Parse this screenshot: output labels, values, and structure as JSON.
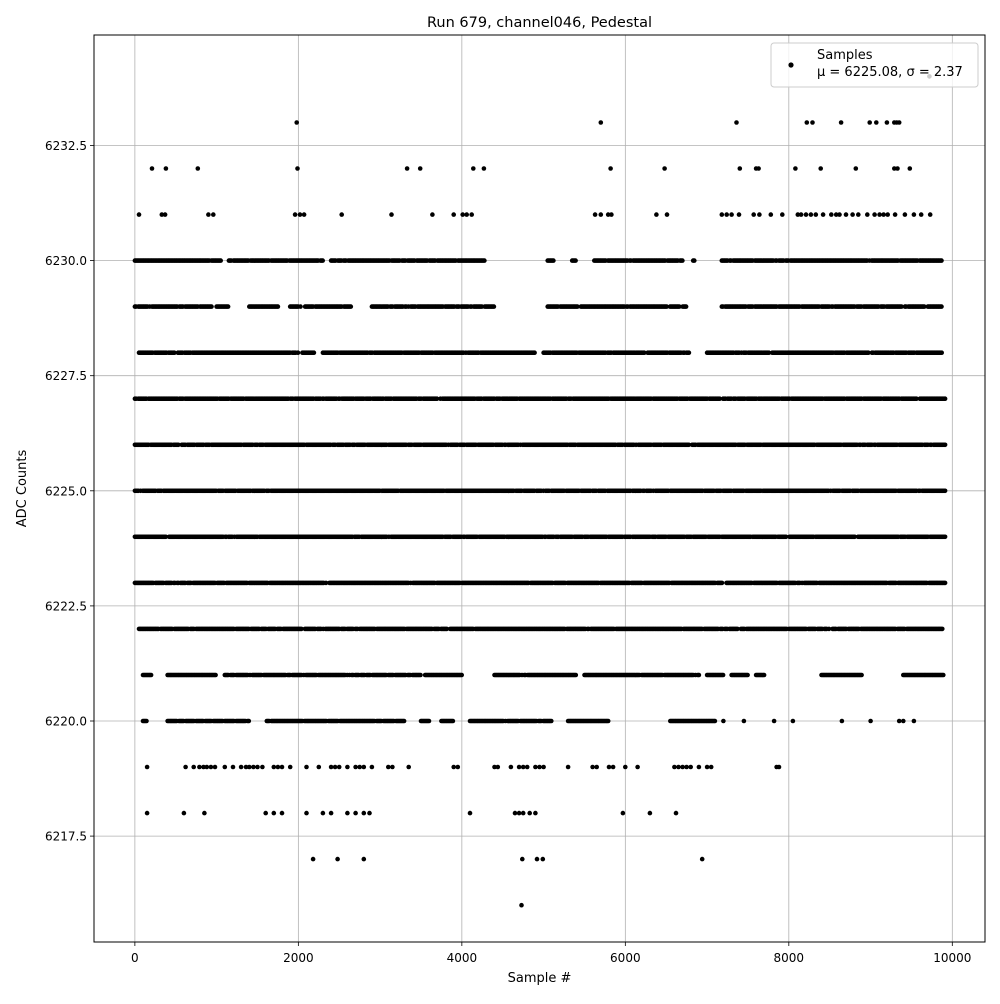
{
  "chart_data": {
    "type": "scatter",
    "title": "Run 679, channel046, Pedestal",
    "xlabel": "Sample #",
    "ylabel": "ADC Counts",
    "xlim": [
      -500,
      10400
    ],
    "ylim": [
      6215.2,
      6234.9
    ],
    "x_ticks": [
      0,
      2000,
      4000,
      6000,
      8000,
      10000
    ],
    "y_ticks": [
      6217.5,
      6220.0,
      6222.5,
      6225.0,
      6227.5,
      6230.0,
      6232.5
    ],
    "grid": true,
    "legend": {
      "placement": "top-right",
      "entries": [
        "Samples",
        "μ = 6225.08, σ = 2.37"
      ]
    },
    "series": [
      {
        "name": "Samples",
        "color": "#000000",
        "sample_count": 10000,
        "mean": 6225.08,
        "sigma": 2.37,
        "levels": [
          {
            "y": 6234,
            "x": [
              9720
            ]
          },
          {
            "y": 6233,
            "x": [
              1980,
              5700,
              7360,
              8220,
              8290,
              8640,
              8990,
              9070,
              9200,
              9290,
              9320,
              9350
            ]
          },
          {
            "y": 6232,
            "x": [
              210,
              380,
              770,
              1990,
              3330,
              3490,
              4140,
              4270,
              5820,
              6480,
              7400,
              7600,
              7630,
              8080,
              8390,
              8820,
              9290,
              9330,
              9480
            ]
          },
          {
            "y": 6231,
            "x": [
              50,
              330,
              370,
              900,
              960,
              1960,
              2020,
              2070,
              2530,
              3140,
              3640,
              3900,
              4010,
              4060,
              4120,
              5630,
              5700,
              5790,
              5830,
              6380,
              6510,
              7180,
              7240,
              7300,
              7390,
              7570,
              7640,
              7780,
              7920,
              8110,
              8150,
              8210,
              8270,
              8330,
              8420,
              8520,
              8580,
              8620,
              8700,
              8780,
              8850,
              8960,
              9050,
              9110,
              9160,
              9210,
              9300,
              9420,
              9530,
              9620,
              9730
            ]
          },
          {
            "segments": [
              [
                0,
                1050
              ],
              [
                1150,
                2300
              ],
              [
                2400,
                4300
              ],
              [
                5050,
                5120
              ],
              [
                5350,
                5400
              ],
              [
                5620,
                6700
              ],
              [
                6830,
                6850
              ],
              [
                7180,
                9880
              ]
            ],
            "y": 6230
          },
          {
            "segments": [
              [
                0,
                950
              ],
              [
                1000,
                1150
              ],
              [
                1400,
                1750
              ],
              [
                1900,
                2650
              ],
              [
                2900,
                4250
              ],
              [
                4280,
                4400
              ],
              [
                5050,
                6750
              ],
              [
                7180,
                9880
              ]
            ],
            "y": 6229
          },
          {
            "segments": [
              [
                50,
                2000
              ],
              [
                2050,
                2200
              ],
              [
                2300,
                4900
              ],
              [
                5000,
                6800
              ],
              [
                7000,
                9880
              ]
            ],
            "y": 6228
          },
          {
            "segments": [
              [
                0,
                9920
              ]
            ],
            "y": 6227
          },
          {
            "segments": [
              [
                0,
                9920
              ]
            ],
            "y": 6226
          },
          {
            "segments": [
              [
                0,
                9920
              ]
            ],
            "y": 6225
          },
          {
            "segments": [
              [
                0,
                9920
              ]
            ],
            "y": 6224
          },
          {
            "segments": [
              [
                0,
                9920
              ]
            ],
            "y": 6223
          },
          {
            "segments": [
              [
                50,
                9880
              ]
            ],
            "y": 6222
          },
          {
            "segments": [
              [
                100,
                200
              ],
              [
                400,
                1000
              ],
              [
                1100,
                3500
              ],
              [
                3550,
                4000
              ],
              [
                4400,
                5400
              ],
              [
                5500,
                6900
              ],
              [
                7000,
                7200
              ],
              [
                7300,
                7500
              ],
              [
                7600,
                7700
              ],
              [
                8400,
                8900
              ],
              [
                9400,
                9900
              ]
            ],
            "y": 6221
          },
          {
            "segments": [
              [
                100,
                150
              ],
              [
                400,
                1400
              ],
              [
                1600,
                3300
              ],
              [
                3500,
                3600
              ],
              [
                3750,
                3900
              ],
              [
                4100,
                5100
              ],
              [
                5300,
                5800
              ],
              [
                6550,
                7100
              ]
            ],
            "y": 6220,
            "x": [
              7200,
              7450,
              7820,
              8050,
              8650,
              9000,
              9350,
              9400,
              9530
            ]
          },
          {
            "y": 6219,
            "x": [
              150,
              620,
              720,
              790,
              840,
              880,
              930,
              980,
              1100,
              1200,
              1300,
              1360,
              1400,
              1450,
              1500,
              1560,
              1700,
              1750,
              1800,
              1900,
              2100,
              2250,
              2400,
              2450,
              2500,
              2600,
              2700,
              2750,
              2800,
              2900,
              3100,
              3150,
              3350,
              3900,
              3950,
              4400,
              4440,
              4600,
              4700,
              4750,
              4800,
              4900,
              4950,
              5000,
              5300,
              5600,
              5650,
              5800,
              5850,
              6000,
              6150,
              6600,
              6650,
              6700,
              6750,
              6800,
              6900,
              7000,
              7050,
              7850,
              7880
            ]
          },
          {
            "y": 6218,
            "x": [
              150,
              600,
              850,
              1600,
              1700,
              1800,
              2100,
              2300,
              2400,
              2600,
              2700,
              2800,
              2870,
              4100,
              4650,
              4700,
              4750,
              4830,
              4900,
              5970,
              6300,
              6620
            ]
          },
          {
            "y": 6217,
            "x": [
              2180,
              2480,
              2800,
              4740,
              4920,
              4990,
              6940
            ]
          },
          {
            "y": 6216,
            "x": [
              4730
            ]
          }
        ]
      }
    ]
  }
}
